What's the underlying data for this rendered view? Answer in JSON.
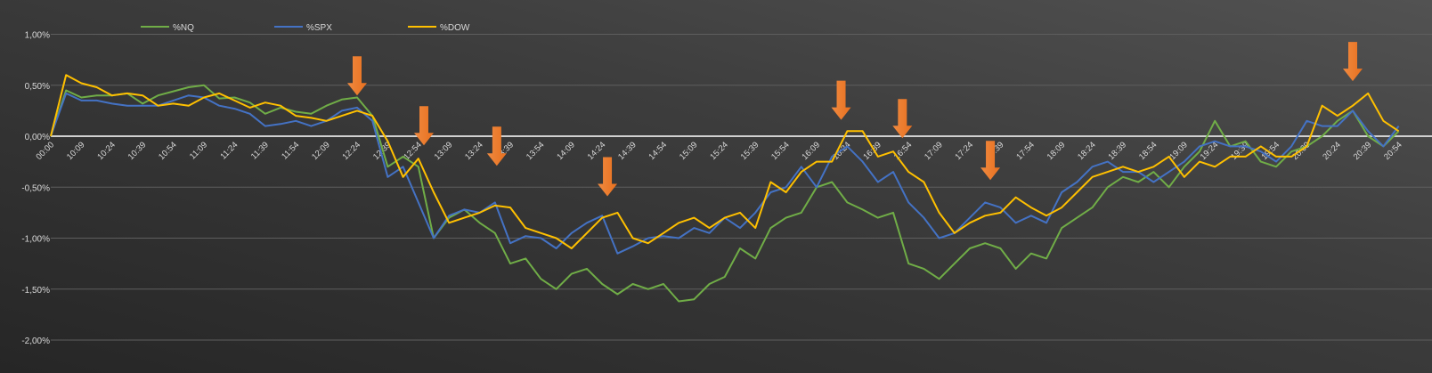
{
  "chart_data": {
    "type": "line",
    "title": "",
    "xlabel": "",
    "ylabel": "",
    "ylim": [
      -0.02,
      0.01
    ],
    "yticks": [
      {
        "value": 0.01,
        "label": "1,00%"
      },
      {
        "value": 0.005,
        "label": "0,50%"
      },
      {
        "value": 0.0,
        "label": "0,00%"
      },
      {
        "value": -0.005,
        "label": "-0,50%"
      },
      {
        "value": -0.01,
        "label": "-1,00%"
      },
      {
        "value": -0.015,
        "label": "-1,50%"
      },
      {
        "value": -0.02,
        "label": "-2,00%"
      }
    ],
    "grid": true,
    "legend_position": "top-left",
    "x_tick_labels": [
      "00:00",
      "10:09",
      "10:24",
      "10:39",
      "10:54",
      "11:09",
      "11:24",
      "11:39",
      "11:54",
      "12:09",
      "12:24",
      "12:39",
      "12:54",
      "13:09",
      "13:24",
      "13:39",
      "13:54",
      "14:09",
      "14:24",
      "14:39",
      "14:54",
      "15:09",
      "15:24",
      "15:39",
      "15:54",
      "16:09",
      "16:24",
      "16:39",
      "16:54",
      "17:09",
      "17:24",
      "17:39",
      "17:54",
      "18:09",
      "18:24",
      "18:39",
      "18:54",
      "19:09",
      "19:24",
      "19:39",
      "19:54",
      "20:09",
      "20:24",
      "20:39",
      "20:54"
    ],
    "points_per_tick": 2,
    "series": [
      {
        "name": "%NQ",
        "color": "#70ad47",
        "values_pct": [
          0,
          0.45,
          0.38,
          0.4,
          0.4,
          0.42,
          0.32,
          0.4,
          0.44,
          0.48,
          0.5,
          0.37,
          0.38,
          0.33,
          0.22,
          0.28,
          0.24,
          0.22,
          0.3,
          0.36,
          0.38,
          0.2,
          -0.3,
          -0.2,
          -0.3,
          -1.0,
          -0.8,
          -0.72,
          -0.85,
          -0.95,
          -1.25,
          -1.2,
          -1.4,
          -1.5,
          -1.35,
          -1.3,
          -1.45,
          -1.55,
          -1.45,
          -1.5,
          -1.45,
          -1.62,
          -1.6,
          -1.45,
          -1.38,
          -1.1,
          -1.2,
          -0.9,
          -0.8,
          -0.75,
          -0.5,
          -0.45,
          -0.65,
          -0.72,
          -0.8,
          -0.75,
          -1.25,
          -1.3,
          -1.4,
          -1.25,
          -1.1,
          -1.05,
          -1.1,
          -1.3,
          -1.15,
          -1.2,
          -0.9,
          -0.8,
          -0.7,
          -0.5,
          -0.4,
          -0.45,
          -0.35,
          -0.5,
          -0.3,
          -0.15,
          0.15,
          -0.1,
          -0.05,
          -0.25,
          -0.3,
          -0.15,
          -0.1,
          0.0,
          0.15,
          0.25,
          0.0,
          -0.1,
          0.05
        ]
      },
      {
        "name": "%SPX",
        "color": "#4472c4",
        "values_pct": [
          0,
          0.42,
          0.35,
          0.35,
          0.32,
          0.3,
          0.3,
          0.3,
          0.35,
          0.4,
          0.38,
          0.3,
          0.27,
          0.22,
          0.1,
          0.12,
          0.15,
          0.1,
          0.15,
          0.25,
          0.28,
          0.15,
          -0.4,
          -0.3,
          -0.65,
          -1.0,
          -0.78,
          -0.72,
          -0.75,
          -0.65,
          -1.05,
          -0.98,
          -1.0,
          -1.1,
          -0.95,
          -0.85,
          -0.78,
          -1.15,
          -1.08,
          -1.0,
          -0.98,
          -1.0,
          -0.9,
          -0.95,
          -0.8,
          -0.9,
          -0.75,
          -0.55,
          -0.5,
          -0.3,
          -0.5,
          -0.2,
          -0.1,
          -0.25,
          -0.45,
          -0.35,
          -0.65,
          -0.8,
          -1.0,
          -0.95,
          -0.8,
          -0.65,
          -0.7,
          -0.85,
          -0.78,
          -0.85,
          -0.55,
          -0.45,
          -0.3,
          -0.25,
          -0.35,
          -0.35,
          -0.45,
          -0.35,
          -0.25,
          -0.1,
          -0.05,
          -0.1,
          -0.1,
          -0.15,
          -0.25,
          -0.1,
          0.15,
          0.1,
          0.1,
          0.25,
          0.05,
          -0.1,
          0.1
        ]
      },
      {
        "name": "%DOW",
        "color": "#ffc000",
        "values_pct": [
          0,
          0.6,
          0.52,
          0.48,
          0.4,
          0.42,
          0.4,
          0.3,
          0.32,
          0.3,
          0.38,
          0.42,
          0.35,
          0.28,
          0.33,
          0.3,
          0.2,
          0.18,
          0.15,
          0.2,
          0.25,
          0.2,
          -0.05,
          -0.4,
          -0.22,
          -0.55,
          -0.85,
          -0.8,
          -0.75,
          -0.68,
          -0.7,
          -0.9,
          -0.95,
          -1.0,
          -1.1,
          -0.95,
          -0.8,
          -0.75,
          -1.0,
          -1.05,
          -0.95,
          -0.85,
          -0.8,
          -0.9,
          -0.8,
          -0.75,
          -0.9,
          -0.45,
          -0.55,
          -0.35,
          -0.25,
          -0.25,
          0.05,
          0.05,
          -0.2,
          -0.15,
          -0.35,
          -0.45,
          -0.75,
          -0.95,
          -0.85,
          -0.78,
          -0.75,
          -0.6,
          -0.7,
          -0.78,
          -0.7,
          -0.55,
          -0.4,
          -0.35,
          -0.3,
          -0.35,
          -0.3,
          -0.2,
          -0.4,
          -0.25,
          -0.3,
          -0.2,
          -0.2,
          -0.1,
          -0.2,
          -0.2,
          -0.1,
          0.3,
          0.2,
          0.3,
          0.42,
          0.15,
          0.05
        ]
      }
    ],
    "annotations": [
      {
        "type": "down-arrow",
        "color": "#ed7d31",
        "at_tick": 10.0,
        "tip_pct": 0.4
      },
      {
        "type": "down-arrow",
        "color": "#ed7d31",
        "at_tick": 12.18,
        "tip_pct": -0.09
      },
      {
        "type": "down-arrow",
        "color": "#ed7d31",
        "at_tick": 14.56,
        "tip_pct": -0.29
      },
      {
        "type": "down-arrow",
        "color": "#ed7d31",
        "at_tick": 18.17,
        "tip_pct": -0.59
      },
      {
        "type": "down-arrow",
        "color": "#ed7d31",
        "at_tick": 25.8,
        "tip_pct": 0.16
      },
      {
        "type": "down-arrow",
        "color": "#ed7d31",
        "at_tick": 27.8,
        "tip_pct": -0.02
      },
      {
        "type": "down-arrow",
        "color": "#ed7d31",
        "at_tick": 30.67,
        "tip_pct": -0.43
      },
      {
        "type": "down-arrow",
        "color": "#ed7d31",
        "at_tick": 42.5,
        "tip_pct": 0.54
      }
    ]
  }
}
